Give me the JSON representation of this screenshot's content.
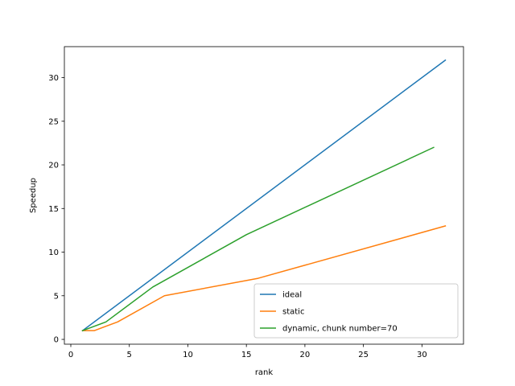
{
  "chart_data": {
    "type": "line",
    "title": "",
    "xlabel": "rank",
    "ylabel": "Speedup",
    "xlim": [
      -0.55,
      33.55
    ],
    "ylim": [
      -0.55,
      33.55
    ],
    "xticks": [
      0,
      5,
      10,
      15,
      20,
      25,
      30
    ],
    "yticks": [
      0,
      5,
      10,
      15,
      20,
      25,
      30
    ],
    "grid": false,
    "legend_position": "lower-right",
    "series": [
      {
        "name": "ideal",
        "color": "#1f77b4",
        "points": [
          [
            1,
            1
          ],
          [
            32,
            32
          ]
        ]
      },
      {
        "name": "static",
        "color": "#ff7f0e",
        "points": [
          [
            1,
            1
          ],
          [
            2,
            1
          ],
          [
            4,
            2
          ],
          [
            8,
            5
          ],
          [
            16,
            7
          ],
          [
            32,
            13
          ]
        ]
      },
      {
        "name": "dynamic, chunk number=70",
        "color": "#2ca02c",
        "points": [
          [
            1,
            1
          ],
          [
            3,
            2
          ],
          [
            7,
            6
          ],
          [
            15,
            12
          ],
          [
            31,
            22
          ]
        ]
      }
    ]
  }
}
